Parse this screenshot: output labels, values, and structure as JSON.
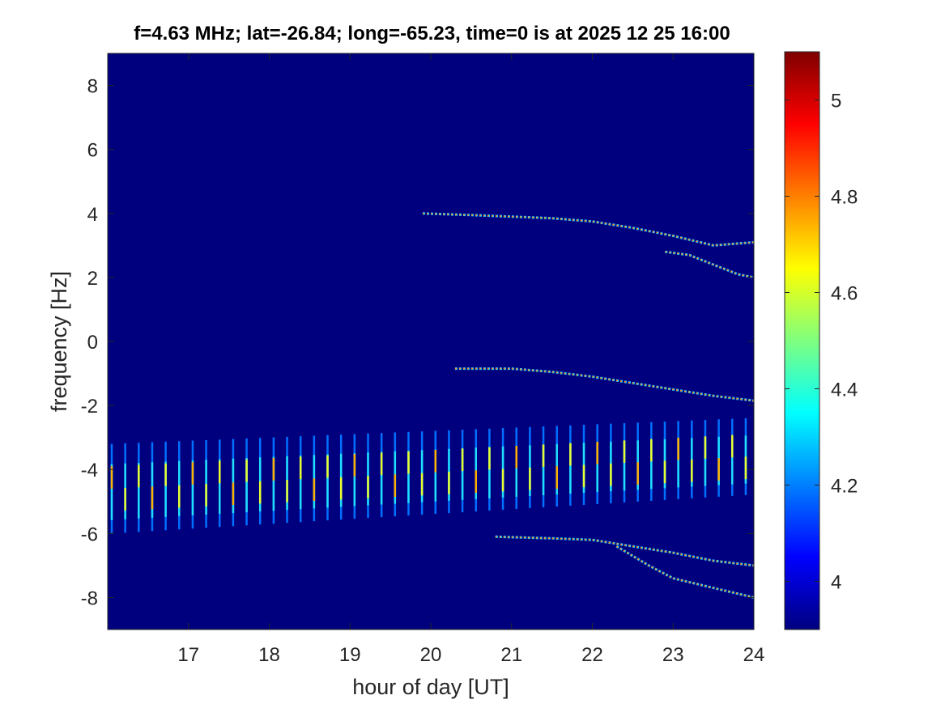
{
  "title": "f=4.63 MHz;  lat=-26.84; long=-65.23, time=0 is at 2025 12 25 16:00",
  "colors": {
    "background": "#00007f",
    "colormap": [
      "#00007f",
      "#0000ff",
      "#007fff",
      "#00ffff",
      "#7fff7f",
      "#ffff00",
      "#ff7f00",
      "#ff0000",
      "#7f0000"
    ]
  },
  "chart_data": {
    "type": "heatmap",
    "title": "f=4.63 MHz;  lat=-26.84; long=-65.23, time=0 is at 2025 12 25 16:00",
    "xlabel": "hour of day [UT]",
    "ylabel": "frequency [Hz]",
    "xlim": [
      16,
      24
    ],
    "ylim": [
      -9,
      9
    ],
    "xticks": [
      "17",
      "18",
      "19",
      "20",
      "21",
      "22",
      "23",
      "24"
    ],
    "yticks": [
      "8",
      "6",
      "4",
      "2",
      "0",
      "-2",
      "-4",
      "-6",
      "-8"
    ],
    "colorbar": {
      "range": [
        3.9,
        5.1
      ],
      "ticks": [
        "5",
        "4.8",
        "4.6",
        "4.4",
        "4.2",
        "4"
      ]
    },
    "traces": [
      {
        "name": "trace-plus-4hz",
        "points": [
          [
            19.9,
            4.0
          ],
          [
            20.5,
            3.95
          ],
          [
            21,
            3.9
          ],
          [
            21.5,
            3.85
          ],
          [
            22,
            3.75
          ],
          [
            22.5,
            3.55
          ],
          [
            23,
            3.3
          ],
          [
            23.5,
            3.0
          ],
          [
            24,
            3.1
          ]
        ]
      },
      {
        "name": "trace-plus-2hz",
        "points": [
          [
            22.9,
            2.8
          ],
          [
            23.2,
            2.7
          ],
          [
            23.5,
            2.4
          ],
          [
            23.8,
            2.1
          ],
          [
            24,
            2.0
          ]
        ]
      },
      {
        "name": "trace-minus-1hz",
        "points": [
          [
            20.3,
            -0.85
          ],
          [
            21,
            -0.85
          ],
          [
            21.5,
            -0.95
          ],
          [
            22,
            -1.1
          ],
          [
            22.5,
            -1.3
          ],
          [
            23,
            -1.5
          ],
          [
            23.5,
            -1.7
          ],
          [
            24,
            -1.85
          ]
        ]
      },
      {
        "name": "trace-minus-6hz",
        "points": [
          [
            20.8,
            -6.1
          ],
          [
            21.5,
            -6.15
          ],
          [
            22,
            -6.2
          ],
          [
            22.5,
            -6.4
          ],
          [
            23,
            -6.6
          ],
          [
            23.5,
            -6.85
          ],
          [
            24,
            -7.0
          ]
        ]
      },
      {
        "name": "trace-minus-8hz",
        "points": [
          [
            22.3,
            -6.4
          ],
          [
            22.7,
            -7.0
          ],
          [
            23,
            -7.4
          ],
          [
            23.5,
            -7.7
          ],
          [
            24,
            -8.0
          ]
        ]
      }
    ],
    "stripes": {
      "x_start": 16.05,
      "x_end": 23.9,
      "spacing_hours": 0.167,
      "center_start": -4.6,
      "center_end": -3.6,
      "half_length_start": 1.4,
      "half_length_end": 1.2
    }
  }
}
